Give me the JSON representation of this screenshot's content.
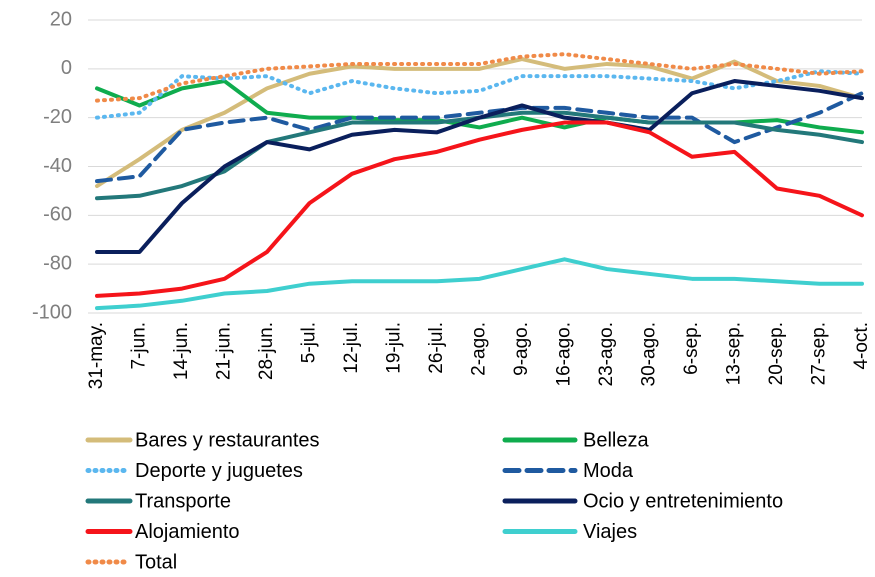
{
  "chart_data": {
    "type": "line",
    "categories": [
      "31-may.",
      "7-jun.",
      "14-jun.",
      "21-jun.",
      "28-jun.",
      "5-jul.",
      "12-jul.",
      "19-jul.",
      "26-jul.",
      "2-ago.",
      "9-ago.",
      "16-ago.",
      "23-ago.",
      "30-ago.",
      "6-sep.",
      "13-sep.",
      "20-sep.",
      "27-sep.",
      "4-oct."
    ],
    "ylim": [
      -100,
      20
    ],
    "yticks": [
      -100,
      -80,
      -60,
      -40,
      -20,
      0,
      20
    ],
    "grid": true,
    "series": [
      {
        "name": "Bares y restaurantes",
        "color": "#d4bc7a",
        "dash": "solid",
        "values": [
          -48,
          -37,
          -25,
          -18,
          -8,
          -2,
          1,
          0,
          0,
          0,
          4,
          0,
          2,
          1,
          -4,
          3,
          -5,
          -7,
          -12
        ]
      },
      {
        "name": "Belleza",
        "color": "#0fac4e",
        "dash": "solid",
        "values": [
          -8,
          -15,
          -8,
          -5,
          -18,
          -20,
          -20,
          -21,
          -21,
          -24,
          -20,
          -24,
          -20,
          -22,
          -22,
          -22,
          -21,
          -24,
          -26
        ]
      },
      {
        "name": "Deporte y juguetes",
        "color": "#5bb7ef",
        "dash": "dotted",
        "values": [
          -20,
          -18,
          -3,
          -4,
          -3,
          -10,
          -5,
          -8,
          -10,
          -9,
          -3,
          -3,
          -3,
          -4,
          -5,
          -8,
          -5,
          -1,
          -2
        ]
      },
      {
        "name": "Moda",
        "color": "#1f5aa0",
        "dash": "dashed",
        "values": [
          -46,
          -44,
          -25,
          -22,
          -20,
          -25,
          -20,
          -20,
          -20,
          -18,
          -16,
          -16,
          -18,
          -20,
          -20,
          -30,
          -24,
          -18,
          -10
        ]
      },
      {
        "name": "Transporte",
        "color": "#23787a",
        "dash": "solid",
        "values": [
          -53,
          -52,
          -48,
          -42,
          -30,
          -26,
          -22,
          -22,
          -22,
          -20,
          -18,
          -18,
          -20,
          -22,
          -22,
          -22,
          -25,
          -27,
          -30
        ]
      },
      {
        "name": "Ocio y entretenimiento",
        "color": "#0a1f5c",
        "dash": "solid",
        "values": [
          -75,
          -75,
          -55,
          -40,
          -30,
          -33,
          -27,
          -25,
          -26,
          -20,
          -15,
          -20,
          -22,
          -25,
          -10,
          -5,
          -7,
          -9,
          -12
        ]
      },
      {
        "name": "Alojamiento",
        "color": "#f5141a",
        "dash": "solid",
        "values": [
          -93,
          -92,
          -90,
          -86,
          -75,
          -55,
          -43,
          -37,
          -34,
          -29,
          -25,
          -22,
          -22,
          -26,
          -36,
          -34,
          -49,
          -52,
          -60
        ]
      },
      {
        "name": "Viajes",
        "color": "#3fcfcf",
        "dash": "solid",
        "values": [
          -98,
          -97,
          -95,
          -92,
          -91,
          -88,
          -87,
          -87,
          -87,
          -86,
          -82,
          -78,
          -82,
          -84,
          -86,
          -86,
          -87,
          -88,
          -88
        ]
      },
      {
        "name": "Total",
        "color": "#f08a48",
        "dash": "dotted",
        "values": [
          -13,
          -12,
          -6,
          -3,
          0,
          1,
          2,
          2,
          2,
          2,
          5,
          6,
          4,
          2,
          0,
          2,
          0,
          -2,
          -1
        ]
      }
    ]
  }
}
